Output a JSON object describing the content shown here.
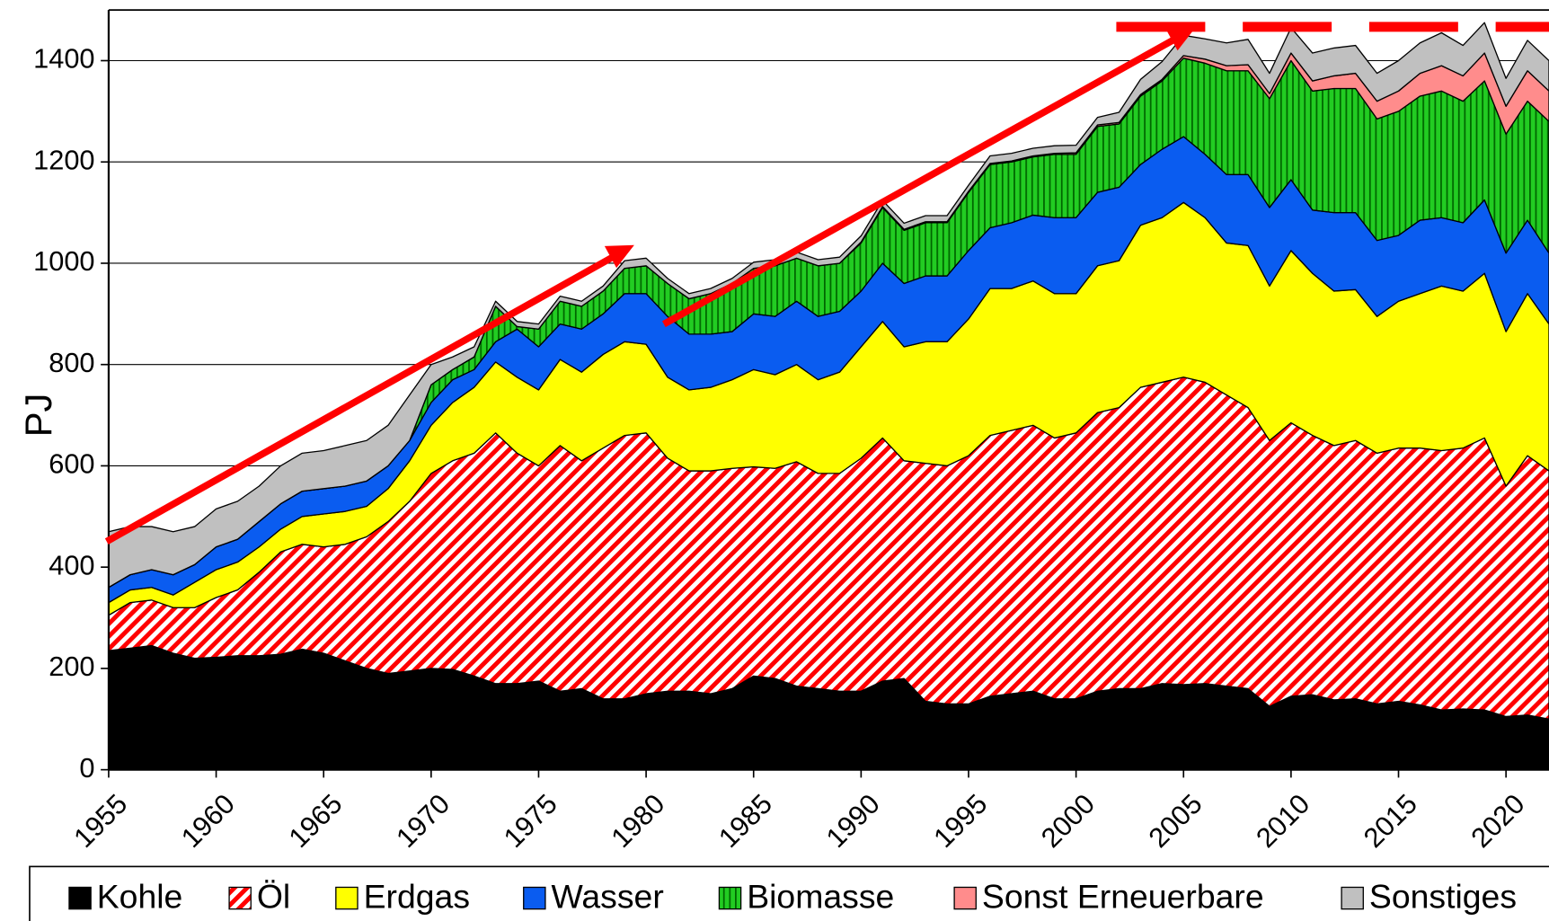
{
  "chart_data": {
    "type": "stacked_area",
    "ylabel": "PJ",
    "xlim": [
      1955,
      2022
    ],
    "ylim": [
      0,
      1500
    ],
    "xticks": [
      1955,
      1960,
      1965,
      1970,
      1975,
      1980,
      1985,
      1990,
      1995,
      2000,
      2005,
      2010,
      2015,
      2020
    ],
    "yticks": [
      0,
      200,
      400,
      600,
      800,
      1000,
      1200,
      1400
    ],
    "grid": true,
    "legend": "bottom",
    "x": [
      1955,
      1956,
      1957,
      1958,
      1959,
      1960,
      1961,
      1962,
      1963,
      1964,
      1965,
      1966,
      1967,
      1968,
      1969,
      1970,
      1971,
      1972,
      1973,
      1974,
      1975,
      1976,
      1977,
      1978,
      1979,
      1980,
      1981,
      1982,
      1983,
      1984,
      1985,
      1986,
      1987,
      1988,
      1989,
      1990,
      1991,
      1992,
      1993,
      1994,
      1995,
      1996,
      1997,
      1998,
      1999,
      2000,
      2001,
      2002,
      2003,
      2004,
      2005,
      2006,
      2007,
      2008,
      2009,
      2010,
      2011,
      2012,
      2013,
      2014,
      2015,
      2016,
      2017,
      2018,
      2019,
      2020,
      2021,
      2022
    ],
    "series": [
      {
        "name": "Kohle",
        "color": "#000000",
        "values": [
          235,
          240,
          245,
          230,
          220,
          222,
          225,
          225,
          228,
          238,
          230,
          215,
          200,
          190,
          195,
          200,
          198,
          185,
          170,
          170,
          175,
          155,
          160,
          140,
          140,
          150,
          155,
          155,
          150,
          160,
          185,
          180,
          165,
          160,
          155,
          155,
          175,
          180,
          135,
          130,
          130,
          145,
          150,
          155,
          140,
          140,
          155,
          160,
          160,
          170,
          168,
          170,
          165,
          160,
          125,
          145,
          148,
          138,
          140,
          130,
          135,
          128,
          118,
          120,
          118,
          105,
          108,
          100
        ]
      },
      {
        "name": "Öl",
        "color": "#ff0000",
        "hatch": "diagonal",
        "values": [
          70,
          90,
          90,
          90,
          100,
          118,
          130,
          165,
          202,
          207,
          210,
          230,
          260,
          300,
          335,
          385,
          412,
          440,
          495,
          455,
          425,
          485,
          450,
          495,
          520,
          515,
          460,
          435,
          440,
          435,
          413,
          415,
          443,
          425,
          430,
          460,
          480,
          430,
          470,
          470,
          490,
          515,
          520,
          525,
          515,
          525,
          550,
          555,
          595,
          595,
          607,
          595,
          575,
          555,
          525,
          540,
          512,
          502,
          510,
          495,
          500,
          507,
          512,
          515,
          537,
          455,
          512,
          490
        ]
      },
      {
        "name": "Erdgas",
        "color": "#ffff00",
        "values": [
          25,
          25,
          25,
          25,
          50,
          55,
          55,
          50,
          45,
          55,
          65,
          65,
          60,
          65,
          80,
          95,
          115,
          130,
          140,
          150,
          150,
          170,
          175,
          185,
          185,
          175,
          160,
          160,
          165,
          175,
          192,
          185,
          192,
          185,
          200,
          220,
          230,
          225,
          240,
          245,
          270,
          290,
          280,
          285,
          285,
          275,
          290,
          290,
          320,
          325,
          345,
          325,
          300,
          320,
          305,
          340,
          320,
          305,
          298,
          270,
          290,
          305,
          325,
          310,
          325,
          305,
          320,
          290
        ]
      },
      {
        "name": "Wasser",
        "color": "#0a5cf0",
        "values": [
          30,
          30,
          35,
          40,
          35,
          45,
          45,
          50,
          50,
          50,
          50,
          50,
          50,
          45,
          40,
          45,
          45,
          35,
          40,
          95,
          85,
          70,
          85,
          80,
          95,
          100,
          120,
          110,
          105,
          95,
          110,
          115,
          125,
          125,
          120,
          110,
          115,
          125,
          130,
          130,
          135,
          120,
          130,
          130,
          150,
          150,
          145,
          145,
          120,
          135,
          130,
          125,
          135,
          140,
          155,
          140,
          125,
          155,
          152,
          150,
          130,
          145,
          135,
          135,
          145,
          155,
          145,
          140
        ]
      },
      {
        "name": "Biomasse",
        "color": "#22cc22",
        "hatch": "vertical",
        "values": [
          0,
          0,
          0,
          0,
          0,
          0,
          0,
          0,
          0,
          0,
          0,
          0,
          0,
          0,
          0,
          35,
          20,
          25,
          70,
          5,
          35,
          45,
          45,
          45,
          50,
          55,
          65,
          70,
          80,
          95,
          90,
          100,
          85,
          100,
          95,
          95,
          110,
          105,
          105,
          105,
          115,
          125,
          120,
          115,
          125,
          125,
          130,
          125,
          135,
          135,
          155,
          180,
          205,
          205,
          215,
          235,
          235,
          245,
          245,
          240,
          245,
          245,
          250,
          240,
          235,
          235,
          235,
          260
        ]
      },
      {
        "name": "Sonst Erneuerbare",
        "color": "#ff8c8c",
        "values": [
          0,
          0,
          0,
          0,
          0,
          0,
          0,
          0,
          0,
          0,
          0,
          0,
          0,
          0,
          0,
          0,
          0,
          0,
          0,
          0,
          0,
          0,
          0,
          0,
          0,
          0,
          0,
          0,
          0,
          0,
          0,
          0,
          0,
          0,
          0,
          2,
          2,
          2,
          2,
          2,
          2,
          2,
          2,
          2,
          2,
          3,
          3,
          3,
          3,
          3,
          5,
          8,
          10,
          12,
          10,
          15,
          20,
          25,
          30,
          35,
          40,
          45,
          50,
          50,
          55,
          55,
          60,
          60
        ]
      },
      {
        "name": "Sonstiges",
        "color": "#c0c0c0",
        "values": [
          110,
          95,
          85,
          85,
          75,
          75,
          75,
          70,
          75,
          75,
          75,
          80,
          80,
          80,
          90,
          40,
          25,
          20,
          10,
          10,
          10,
          10,
          10,
          10,
          15,
          15,
          10,
          10,
          10,
          10,
          12,
          12,
          12,
          12,
          12,
          12,
          12,
          12,
          12,
          12,
          12,
          15,
          15,
          15,
          15,
          15,
          15,
          20,
          30,
          35,
          40,
          40,
          45,
          50,
          40,
          50,
          55,
          55,
          55,
          55,
          60,
          60,
          65,
          60,
          60,
          55,
          60,
          60
        ]
      }
    ]
  }
}
